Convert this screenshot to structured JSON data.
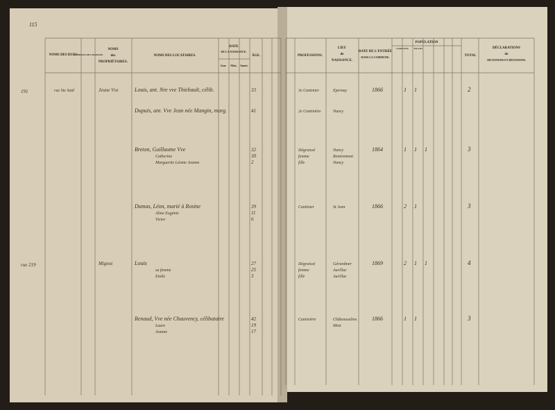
{
  "page_number": "115",
  "left_header": {
    "streets": "NOMS DES RUES",
    "house_numbers": "NUMÉROS DES MAISONS",
    "owners_1": "NOMS",
    "owners_2": "des",
    "owners_3": "PROPRIÉTAIRES.",
    "tenants": "NOMS DES LOCATAIRES.",
    "birth_1": "DATE",
    "birth_2": "DE LA NAISSANCE.",
    "day": "Jour.",
    "month": "Mois.",
    "year": "Année.",
    "age": "ÂGE."
  },
  "right_header": {
    "professions": "PROFESSIONS.",
    "birthplace_1": "LIEU",
    "birthplace_2": "de",
    "birthplace_3": "NAISSANCE.",
    "entry_1": "DATE DE L'ENTRÉE",
    "entry_2": "DANS LA COMMUNE.",
    "population": "POPULATION",
    "boys": "GARÇONS",
    "girls": "FILLES",
    "total": "TOTAL",
    "decl_1": "DÉCLARATIONS",
    "decl_2": "de",
    "decl_3": "MUTATIONS ET DÉNATIONS."
  },
  "entries": [
    {
      "margin": "191",
      "street": "rue Ste Saül",
      "owner": "Jeune Vve",
      "tenants": [
        "Louis, ant. Nre vve Thiebault, célib."
      ],
      "ages": [
        "33"
      ],
      "professions": [
        "3e Cantinier"
      ],
      "birthplaces": [
        "Epernay"
      ],
      "entry_date": "1866",
      "population": [
        "1",
        "1"
      ],
      "total": "2"
    },
    {
      "tenants": [
        "Dupuis, ant. Vve Jean née Mangin, marg."
      ],
      "ages": [
        "41"
      ],
      "professions": [
        "2e Cantinière"
      ],
      "birthplaces": [
        "Nancy"
      ]
    },
    {
      "tenants": [
        "Breton, Guillaume Vve",
        "Catherine",
        "Marguerite Léonie Jeanne"
      ],
      "ages": [
        "32",
        "30",
        "2"
      ],
      "professions": [
        "Dégraissé",
        "femme",
        "fille"
      ],
      "birthplaces": [
        "Nancy",
        "Remiremont",
        "Nancy"
      ],
      "entry_date": "1864",
      "population": [
        "1",
        "1",
        "1"
      ],
      "total": "3"
    },
    {
      "tenants": [
        "Dumas, Léon, marié à Rosine",
        "Aline Eugénie",
        "Victor"
      ],
      "ages": [
        "39",
        "11",
        "6"
      ],
      "professions": [
        "Cantinier"
      ],
      "birthplaces": [
        "St Jean"
      ],
      "entry_date": "1866",
      "population": [
        "2",
        "1"
      ],
      "total": "3"
    },
    {
      "margin": "rue 219",
      "owner": "Mignot",
      "tenants": [
        "Louis",
        "sa femme",
        "Emile"
      ],
      "ages": [
        "27",
        "25",
        "3"
      ],
      "professions": [
        "Dégraissé",
        "femme",
        "fille"
      ],
      "birthplaces": [
        "Gérardmer",
        "Aurillac",
        "Aurillac"
      ],
      "entry_date": "1869",
      "population": [
        "2",
        "1",
        "1"
      ],
      "total": "4"
    },
    {
      "tenants": [
        "Renaud, Vve née Chauvency, célibataire",
        "Laure",
        "Jeanne"
      ],
      "ages": [
        "42",
        "19",
        "17"
      ],
      "professions": [
        "Cantinière"
      ],
      "birthplaces": [
        "Châteausalins",
        "Metz"
      ],
      "entry_date": "1866",
      "population": [
        "1",
        "1"
      ],
      "total": "3"
    }
  ]
}
